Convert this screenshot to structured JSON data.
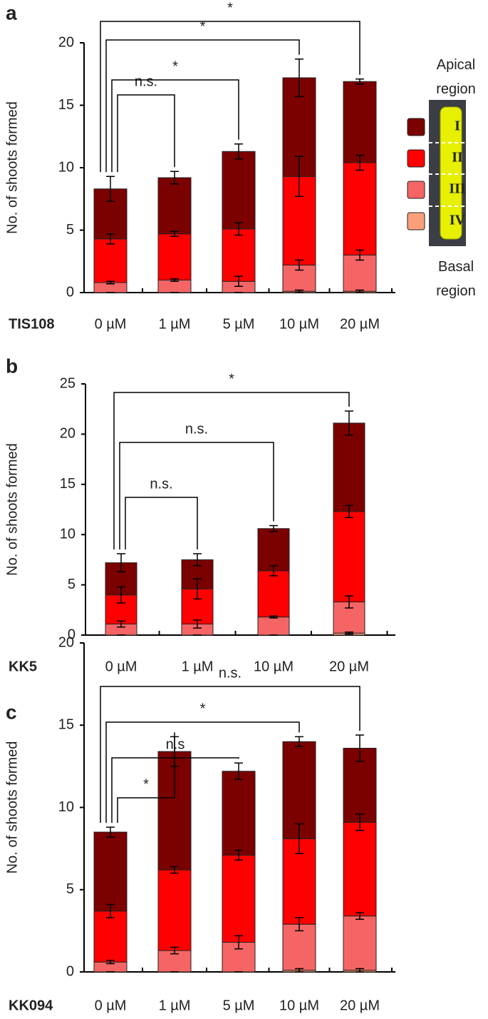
{
  "chart_data": [
    {
      "type": "stacked-bar",
      "panel": "a",
      "ylabel": "No. of shoots formed",
      "xlabel": "TIS108",
      "categories": [
        "0 µM",
        "1 µM",
        "5 µM",
        "10 µM",
        "20 µM"
      ],
      "ylim": [
        0,
        20
      ],
      "yticks": [
        0,
        5,
        10,
        15,
        20
      ],
      "series": [
        {
          "name": "IV",
          "color": "#f9a07a",
          "values": [
            0,
            0,
            0,
            0.1,
            0.1
          ],
          "errors": [
            0,
            0,
            0,
            0.1,
            0.1
          ]
        },
        {
          "name": "III",
          "color": "#f56565",
          "values": [
            0.8,
            1.0,
            0.9,
            2.1,
            2.9
          ],
          "errors": [
            0.1,
            0.1,
            0.4,
            0.4,
            0.4
          ]
        },
        {
          "name": "II",
          "color": "#ff0000",
          "values": [
            3.5,
            3.7,
            4.2,
            7.1,
            7.4
          ],
          "errors": [
            0.4,
            0.2,
            0.5,
            1.6,
            0.6
          ]
        },
        {
          "name": "I",
          "color": "#7b0000",
          "values": [
            4.0,
            4.5,
            6.2,
            7.9,
            6.5
          ],
          "errors": [
            1.0,
            0.5,
            0.6,
            1.5,
            0.2
          ]
        }
      ],
      "annotations": [
        {
          "text": "n.s.",
          "from": "0 µM",
          "to": "1 µM"
        },
        {
          "text": "*",
          "from": "0 µM",
          "to": "5 µM"
        },
        {
          "text": "*",
          "from": "0 µM",
          "to": "10 µM"
        },
        {
          "text": "*",
          "from": "0 µM",
          "to": "20 µM"
        }
      ],
      "apical_label": "Apical region",
      "basal_label": "Basal region"
    },
    {
      "type": "stacked-bar",
      "panel": "b",
      "ylabel": "No. of shoots formed",
      "xlabel": "KK5",
      "categories": [
        "0 µM",
        "1 µM",
        "10 µM",
        "20 µM"
      ],
      "ylim": [
        0,
        25
      ],
      "yticks": [
        0,
        5,
        10,
        15,
        20,
        25
      ],
      "series": [
        {
          "color": "#f9a07a",
          "values": [
            0,
            0,
            0,
            0.2
          ],
          "errors": [
            0,
            0,
            0,
            0.1
          ]
        },
        {
          "color": "#f56565",
          "values": [
            1.1,
            1.1,
            1.8,
            3.1
          ],
          "errors": [
            0.3,
            0.4,
            0.1,
            0.6
          ]
        },
        {
          "color": "#ff0000",
          "values": [
            2.9,
            3.5,
            4.6,
            9.0
          ],
          "errors": [
            0.8,
            1.0,
            0.5,
            0.6
          ]
        },
        {
          "color": "#7b0000",
          "values": [
            3.2,
            2.9,
            4.2,
            8.8
          ],
          "errors": [
            0.9,
            0.6,
            0.3,
            1.2
          ]
        }
      ],
      "annotations": [
        {
          "text": "n.s.",
          "from": "0 µM",
          "to": "1 µM"
        },
        {
          "text": "n.s.",
          "from": "0 µM",
          "to": "10 µM"
        },
        {
          "text": "*",
          "from": "0 µM",
          "to": "20 µM"
        }
      ]
    },
    {
      "type": "stacked-bar",
      "panel": "c",
      "ylabel": "No. of shoots formed",
      "xlabel": "KK094",
      "categories": [
        "0 µM",
        "1 µM",
        "5 µM",
        "10 µM",
        "20 µM"
      ],
      "ylim": [
        0,
        20
      ],
      "yticks": [
        0,
        5,
        10,
        15,
        20
      ],
      "series": [
        {
          "color": "#f9a07a",
          "values": [
            0,
            0,
            0,
            0.1,
            0.1
          ],
          "errors": [
            0,
            0,
            0,
            0.1,
            0.1
          ]
        },
        {
          "color": "#f56565",
          "values": [
            0.6,
            1.3,
            1.8,
            2.8,
            3.3
          ],
          "errors": [
            0.1,
            0.2,
            0.4,
            0.4,
            0.2
          ]
        },
        {
          "color": "#ff0000",
          "values": [
            3.1,
            4.9,
            5.3,
            5.2,
            5.7
          ],
          "errors": [
            0.4,
            0.2,
            0.3,
            0.9,
            0.5
          ]
        },
        {
          "color": "#7b0000",
          "values": [
            4.8,
            7.2,
            5.1,
            5.9,
            4.5
          ],
          "errors": [
            0.3,
            0.9,
            0.5,
            0.3,
            0.8
          ]
        }
      ],
      "annotations": [
        {
          "text": "*",
          "from": "0 µM",
          "to": "1 µM"
        },
        {
          "text": "n.s",
          "from": "0 µM",
          "to": "5 µM"
        },
        {
          "text": "*",
          "from": "0 µM",
          "to": "10 µM"
        },
        {
          "text": "n.s.",
          "from": "0 µM",
          "to": "20 µM"
        }
      ]
    }
  ]
}
